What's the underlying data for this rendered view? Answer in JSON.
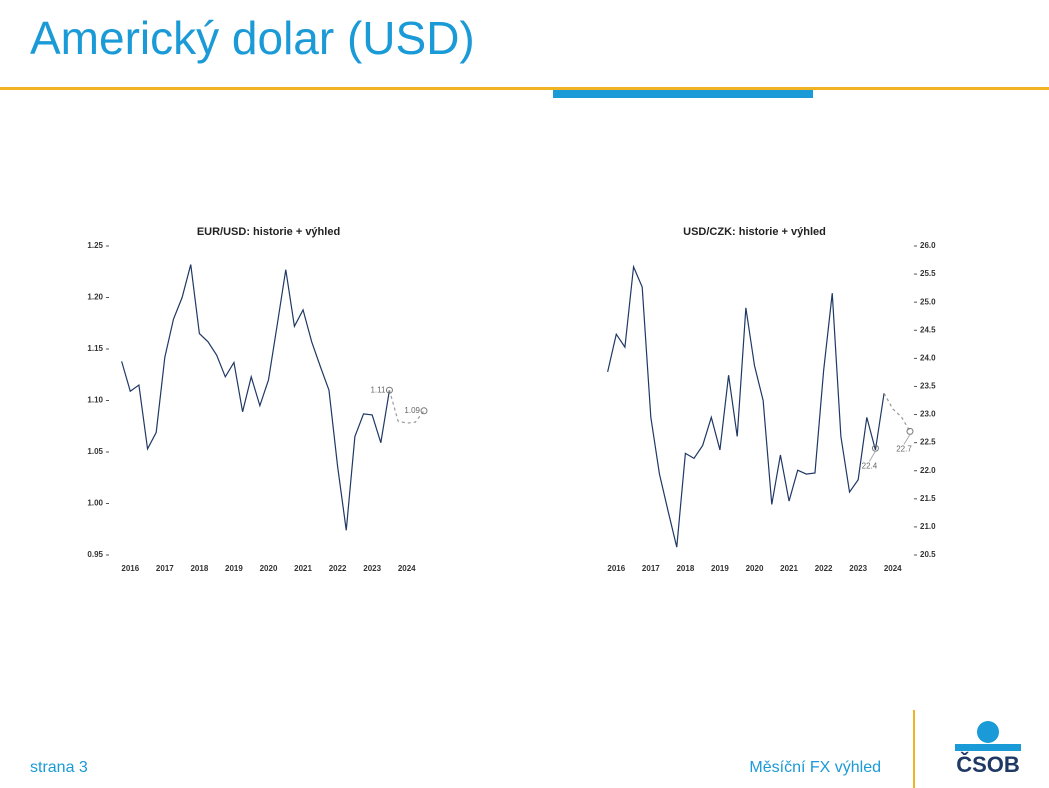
{
  "header": {
    "title": "Americký dolar (USD)"
  },
  "chart_data": [
    {
      "type": "line",
      "title": "EUR/USD: historie + výhled",
      "yaxis_side": "left",
      "xlim": [
        2016,
        2025
      ],
      "xticks": [
        {
          "value": 2016.5,
          "label": "2016"
        },
        {
          "value": 2017.5,
          "label": "2017"
        },
        {
          "value": 2018.5,
          "label": "2018"
        },
        {
          "value": 2019.5,
          "label": "2019"
        },
        {
          "value": 2020.5,
          "label": "2020"
        },
        {
          "value": 2021.5,
          "label": "2021"
        },
        {
          "value": 2022.5,
          "label": "2022"
        },
        {
          "value": 2023.5,
          "label": "2023"
        },
        {
          "value": 2024.5,
          "label": "2024"
        }
      ],
      "ylim": [
        0.95,
        1.25
      ],
      "yticks": [
        0.95,
        {
          "value": 1,
          "label": "1.00"
        },
        1.05,
        {
          "value": 1.1,
          "label": "1.10"
        },
        1.15,
        {
          "value": 1.2,
          "label": "1.20"
        },
        1.25
      ],
      "series": [
        {
          "color": "#1f3864",
          "dash": false,
          "x": [
            2016.25,
            2016.5,
            2016.75,
            2017,
            2017.25,
            2017.5,
            2017.75,
            2018,
            2018.25,
            2018.5,
            2018.75,
            2019,
            2019.25,
            2019.5,
            2019.75,
            2020,
            2020.25,
            2020.5,
            2020.75,
            2021,
            2021.25,
            2021.5,
            2021.75,
            2022,
            2022.25,
            2022.5,
            2022.75,
            2023,
            2023.25,
            2023.5,
            2023.75,
            2024
          ],
          "values": [
            1.138,
            1.109,
            1.115,
            1.053,
            1.069,
            1.142,
            1.179,
            1.2,
            1.232,
            1.165,
            1.157,
            1.144,
            1.123,
            1.137,
            1.089,
            1.123,
            1.095,
            1.12,
            1.173,
            1.227,
            1.172,
            1.188,
            1.157,
            1.133,
            1.11,
            1.036,
            0.974,
            1.065,
            1.087,
            1.086,
            1.059,
            1.11
          ]
        },
        {
          "color": "#999999",
          "dash": true,
          "x": [
            2024,
            2024.25,
            2024.5,
            2024.75,
            2025
          ],
          "values": [
            1.11,
            1.08,
            1.078,
            1.079,
            1.09
          ]
        }
      ],
      "annotations": [
        {
          "x": 2024,
          "y": 1.11
        },
        {
          "x": 2025,
          "y": 1.09
        }
      ]
    },
    {
      "type": "line",
      "title": "USD/CZK: historie + výhled",
      "yaxis_side": "right",
      "xlim": [
        2016,
        2025
      ],
      "xticks": [
        {
          "value": 2016.5,
          "label": "2016"
        },
        {
          "value": 2017.5,
          "label": "2017"
        },
        {
          "value": 2018.5,
          "label": "2018"
        },
        {
          "value": 2019.5,
          "label": "2019"
        },
        {
          "value": 2020.5,
          "label": "2020"
        },
        {
          "value": 2021.5,
          "label": "2021"
        },
        {
          "value": 2022.5,
          "label": "2022"
        },
        {
          "value": 2023.5,
          "label": "2023"
        },
        {
          "value": 2024.5,
          "label": "2024"
        }
      ],
      "ylim": [
        20.5,
        26
      ],
      "yticks": [
        20.5,
        {
          "value": 21,
          "label": "21.0"
        },
        21.5,
        {
          "value": 22,
          "label": "22.0"
        },
        22.5,
        {
          "value": 23,
          "label": "23.0"
        },
        23.5,
        {
          "value": 24,
          "label": "24.0"
        },
        24.5,
        {
          "value": 25,
          "label": "25.0"
        },
        25.5,
        {
          "value": 26,
          "label": "26.0"
        }
      ],
      "series": [
        {
          "color": "#1f3864",
          "dash": false,
          "x": [
            2016.25,
            2016.5,
            2016.75,
            2017,
            2017.25,
            2017.5,
            2017.75,
            2018,
            2018.25,
            2018.5,
            2018.75,
            2019,
            2019.25,
            2019.5,
            2019.75,
            2020,
            2020.25,
            2020.5,
            2020.75,
            2021,
            2021.25,
            2021.5,
            2021.75,
            2022,
            2022.25,
            2022.5,
            2022.75,
            2023,
            2023.25,
            2023.5,
            2023.75,
            2024,
            2024.25
          ],
          "values": [
            23.76,
            24.43,
            24.2,
            25.63,
            25.27,
            22.95,
            21.94,
            21.28,
            20.64,
            22.31,
            22.22,
            22.45,
            22.95,
            22.37,
            23.7,
            22.61,
            24.9,
            23.87,
            23.25,
            21.4,
            22.28,
            21.46,
            22.01,
            21.94,
            21.96,
            23.78,
            25.16,
            22.61,
            21.62,
            21.84,
            22.95,
            22.37,
            23.38
          ]
        },
        {
          "color": "#999999",
          "dash": true,
          "x": [
            2024.25,
            2024.5,
            2024.75,
            2025
          ],
          "values": [
            23.38,
            23.1,
            22.96,
            22.7
          ]
        }
      ],
      "annotations": [
        {
          "x": 2024,
          "y": 22.4
        },
        {
          "x": 2025,
          "y": 22.7
        }
      ]
    }
  ],
  "footer": {
    "page": "strana 3",
    "title": "Měsíční FX výhled",
    "logo": "ČSOB"
  }
}
